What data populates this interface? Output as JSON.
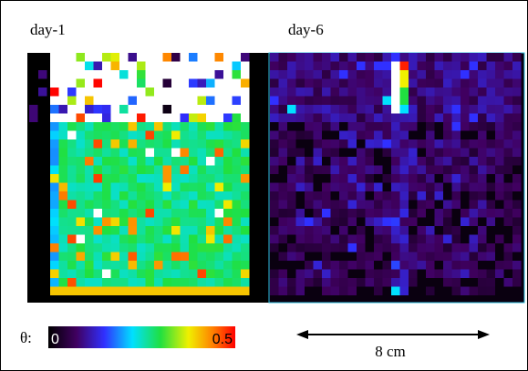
{
  "panels": [
    {
      "label": "day-1"
    },
    {
      "label": "day-6"
    }
  ],
  "colorbar": {
    "symbol": "θ:",
    "min_label": "0",
    "max_label": "0.5"
  },
  "scale_bar": {
    "label": "8 cm"
  }
}
